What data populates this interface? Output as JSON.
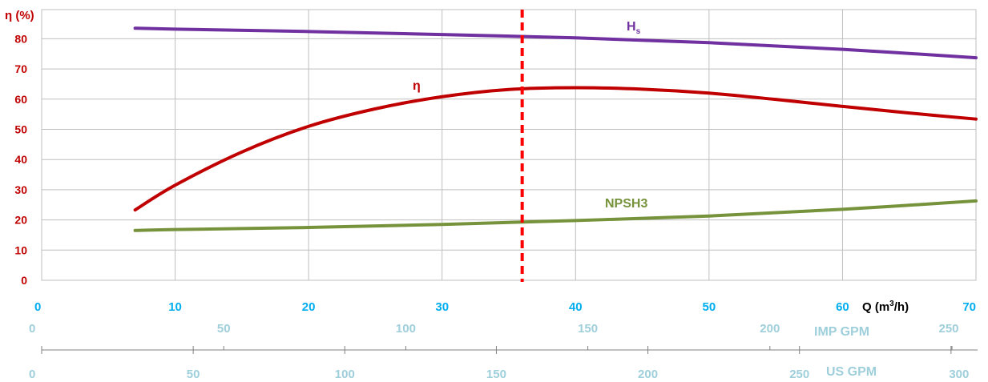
{
  "chart_data": {
    "type": "line",
    "ylabel": "η (%)",
    "ylim": [
      0,
      85
    ],
    "yticks": [
      0,
      10,
      20,
      30,
      40,
      50,
      60,
      70,
      80
    ],
    "xlabel": "Q (m³/h)",
    "xlabel_main": "Q (m",
    "xlabel_sup": "3",
    "xlabel_end": "/h)",
    "xlim": [
      0,
      70
    ],
    "xticks": [
      0,
      10,
      20,
      30,
      40,
      50,
      60,
      70
    ],
    "grid": true,
    "secondary_axes": [
      {
        "name": "IMP GPM",
        "ticks": [
          0,
          50,
          100,
          150,
          200,
          250
        ]
      },
      {
        "name": "US GPM",
        "ticks": [
          0,
          50,
          100,
          150,
          200,
          250,
          300
        ]
      }
    ],
    "series": [
      {
        "name": "Hs",
        "name_main": "H",
        "name_sub": "s",
        "color": "#7030a0",
        "x": [
          7,
          10,
          20,
          30,
          40,
          50,
          60,
          70
        ],
        "y": [
          83.5,
          83.2,
          82.4,
          81.4,
          80.3,
          78.7,
          76.5,
          73.7
        ]
      },
      {
        "name": "η",
        "color": "#c00000",
        "x": [
          7,
          10,
          15,
          20,
          25,
          30,
          35,
          40,
          45,
          50,
          55,
          60,
          65,
          70
        ],
        "y": [
          23.3,
          31.5,
          42.5,
          51,
          56.8,
          60.8,
          63.2,
          63.8,
          63.3,
          62,
          59.9,
          57.6,
          55.4,
          53.4
        ]
      },
      {
        "name": "NPSH3",
        "color": "#76933c",
        "x": [
          7,
          10,
          20,
          30,
          40,
          50,
          60,
          70
        ],
        "y": [
          16.5,
          16.8,
          17.5,
          18.5,
          19.8,
          21.3,
          23.5,
          26.3
        ]
      }
    ],
    "reference_line": {
      "x": 36,
      "color": "#ff0000",
      "style": "dashed"
    }
  }
}
